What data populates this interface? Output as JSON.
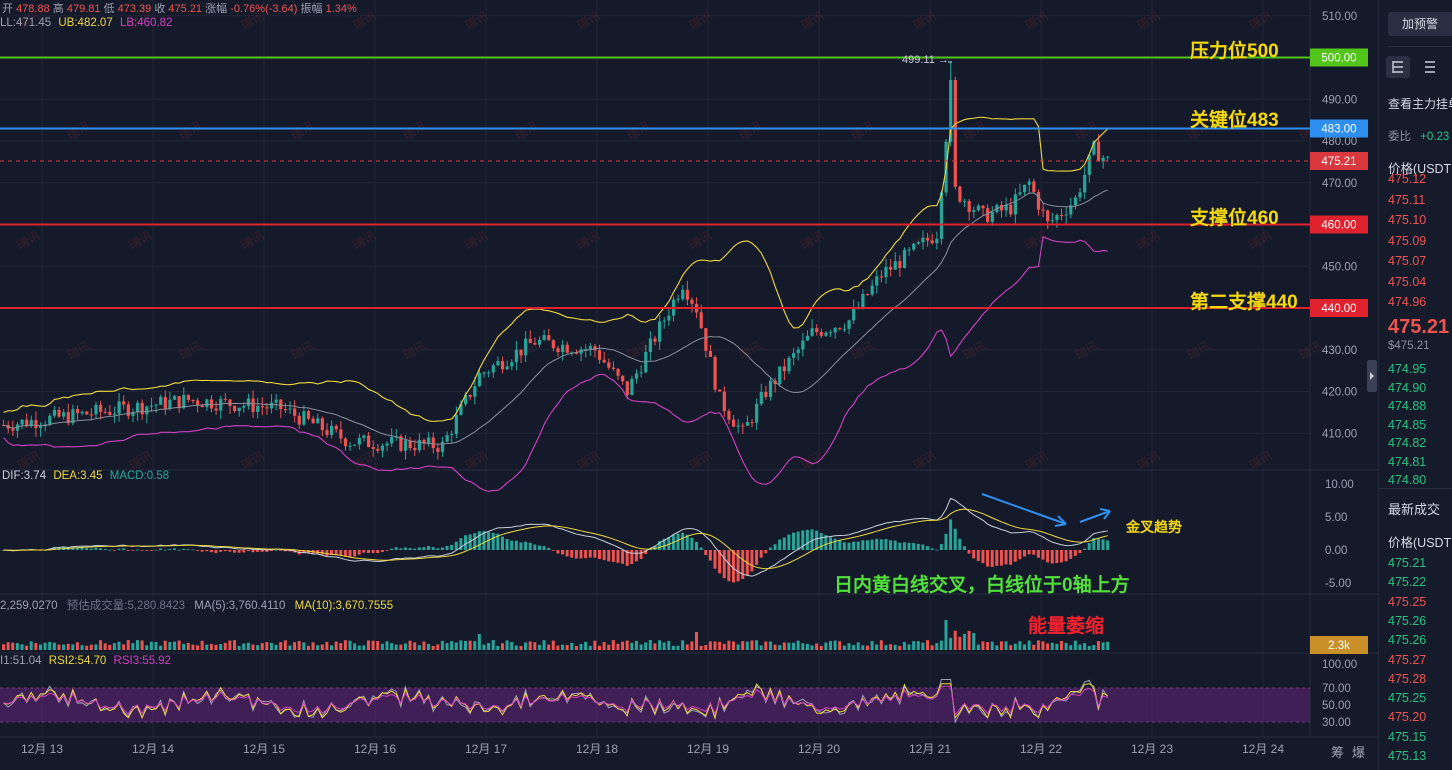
{
  "ohlc_bar": {
    "open_label": "开",
    "open": "478.88",
    "high_label": "高",
    "high": "479.81",
    "low_label": "低",
    "low": "473.39",
    "close_label": "收",
    "close": "475.21",
    "change_label": "涨幅",
    "change": "-0.76%(-3.64)",
    "amplitude_label": "振幅",
    "amplitude": "1.34%"
  },
  "boll": {
    "ll": "LL:471.45",
    "ub": "UB:482.07",
    "lb": "LB:460.82"
  },
  "macd_legend": {
    "dif": "DIF:3.74",
    "dea": "DEA:3.45",
    "macd": "MACD:0.58"
  },
  "volume_legend": {
    "vol": "2,259.0270",
    "est": "预估成交量:5,280.8423",
    "ma5": "MA(5):3,760.4110",
    "ma10": "MA(10):3,670.7555"
  },
  "rsi_legend": {
    "rsi1": "I1:51.04",
    "rsi2": "RSI2:54.70",
    "rsi3": "RSI3:55.92"
  },
  "annotations": {
    "resistance": "压力位500",
    "key": "关键位483",
    "support": "支撑位460",
    "support2": "第二支撑440",
    "golden_cross": "金叉趋势",
    "macd_note": "日内黄白线交叉，白线位于0轴上方",
    "volume_note": "能量萎缩",
    "peak": "499.11"
  },
  "price_axis": [
    "510.00",
    "490.00",
    "480.00",
    "470.00",
    "450.00",
    "430.00",
    "420.00",
    "410.00"
  ],
  "macd_axis": [
    "10.00",
    "5.00",
    "0.00",
    "-5.00"
  ],
  "rsi_axis": [
    "100.00",
    "70.00",
    "50.00",
    "30.00"
  ],
  "level_tags": [
    {
      "value": 500,
      "label": "500.00",
      "color": "#52c41a"
    },
    {
      "value": 483,
      "label": "483.00",
      "color": "#2f8ff0"
    },
    {
      "value": 475.21,
      "label": "475.21",
      "color": "#d9383e"
    },
    {
      "value": 460,
      "label": "460.00",
      "color": "#e0222f"
    },
    {
      "value": 440,
      "label": "440.00",
      "color": "#e0222f"
    }
  ],
  "volume_tag": "2.3k",
  "x_axis": [
    "12月 13",
    "12月 14",
    "12月 15",
    "12月 16",
    "12月 17",
    "12月 18",
    "12月 19",
    "12月 20",
    "12月 21",
    "12月 22",
    "12月 23",
    "12月 24"
  ],
  "bottom_right": {
    "a": "筹",
    "b": "爆"
  },
  "watermark": "瑞讯",
  "colors": {
    "up": "#26a69a",
    "down": "#ef5350",
    "ub": "#f0d83a",
    "lb": "#d23fc3",
    "mid": "#8a8f9c",
    "resistance": "#52c41a",
    "key": "#2f8ff0",
    "support": "#e0222f"
  },
  "side_panel": {
    "alert_button": "加预警",
    "depth_title": "查看主力挂单",
    "ratio_label": "委比",
    "ratio_value": "+0.23",
    "price_header": "价格(USDT",
    "asks": [
      "475.12",
      "475.11",
      "475.10",
      "475.09",
      "475.07",
      "475.04",
      "474.96"
    ],
    "last_price": "475.21",
    "last_price_usd": "$475.21",
    "bids": [
      "474.95",
      "474.90",
      "474.88",
      "474.85",
      "474.82",
      "474.81",
      "474.80"
    ],
    "trades_title": "最新成交",
    "trades_header": "价格(USDT",
    "trades": [
      "475.21",
      "475.22",
      "475.25",
      "475.26",
      "475.26",
      "475.27",
      "475.28",
      "475.25",
      "475.20",
      "475.15",
      "475.13"
    ],
    "trades_up": [
      true,
      true,
      false,
      true,
      true,
      false,
      false,
      true,
      false,
      true,
      true
    ]
  }
}
